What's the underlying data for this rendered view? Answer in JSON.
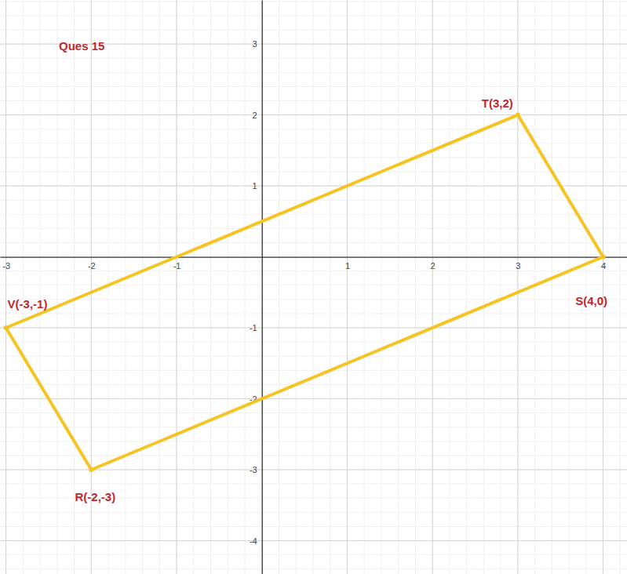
{
  "chart_data": {
    "type": "polygon",
    "title": "Ques 15",
    "x": [
      -3,
      -2,
      4,
      3
    ],
    "values": [
      -1,
      -3,
      0,
      2
    ],
    "point_labels": [
      "V(-3,-1)",
      "R(-2,-3)",
      "S(4,0)",
      "T(3,2)"
    ],
    "color": "#f5c422",
    "marker": "circle",
    "xlim": [
      -3.07,
      4.28
    ],
    "ylim": [
      -4.47,
      3.62
    ],
    "xticks": [
      -3,
      -2,
      -1,
      1,
      2,
      3,
      4
    ],
    "yticks": [
      -4,
      -3,
      -2,
      -1,
      1,
      2,
      3
    ],
    "grid": true
  }
}
